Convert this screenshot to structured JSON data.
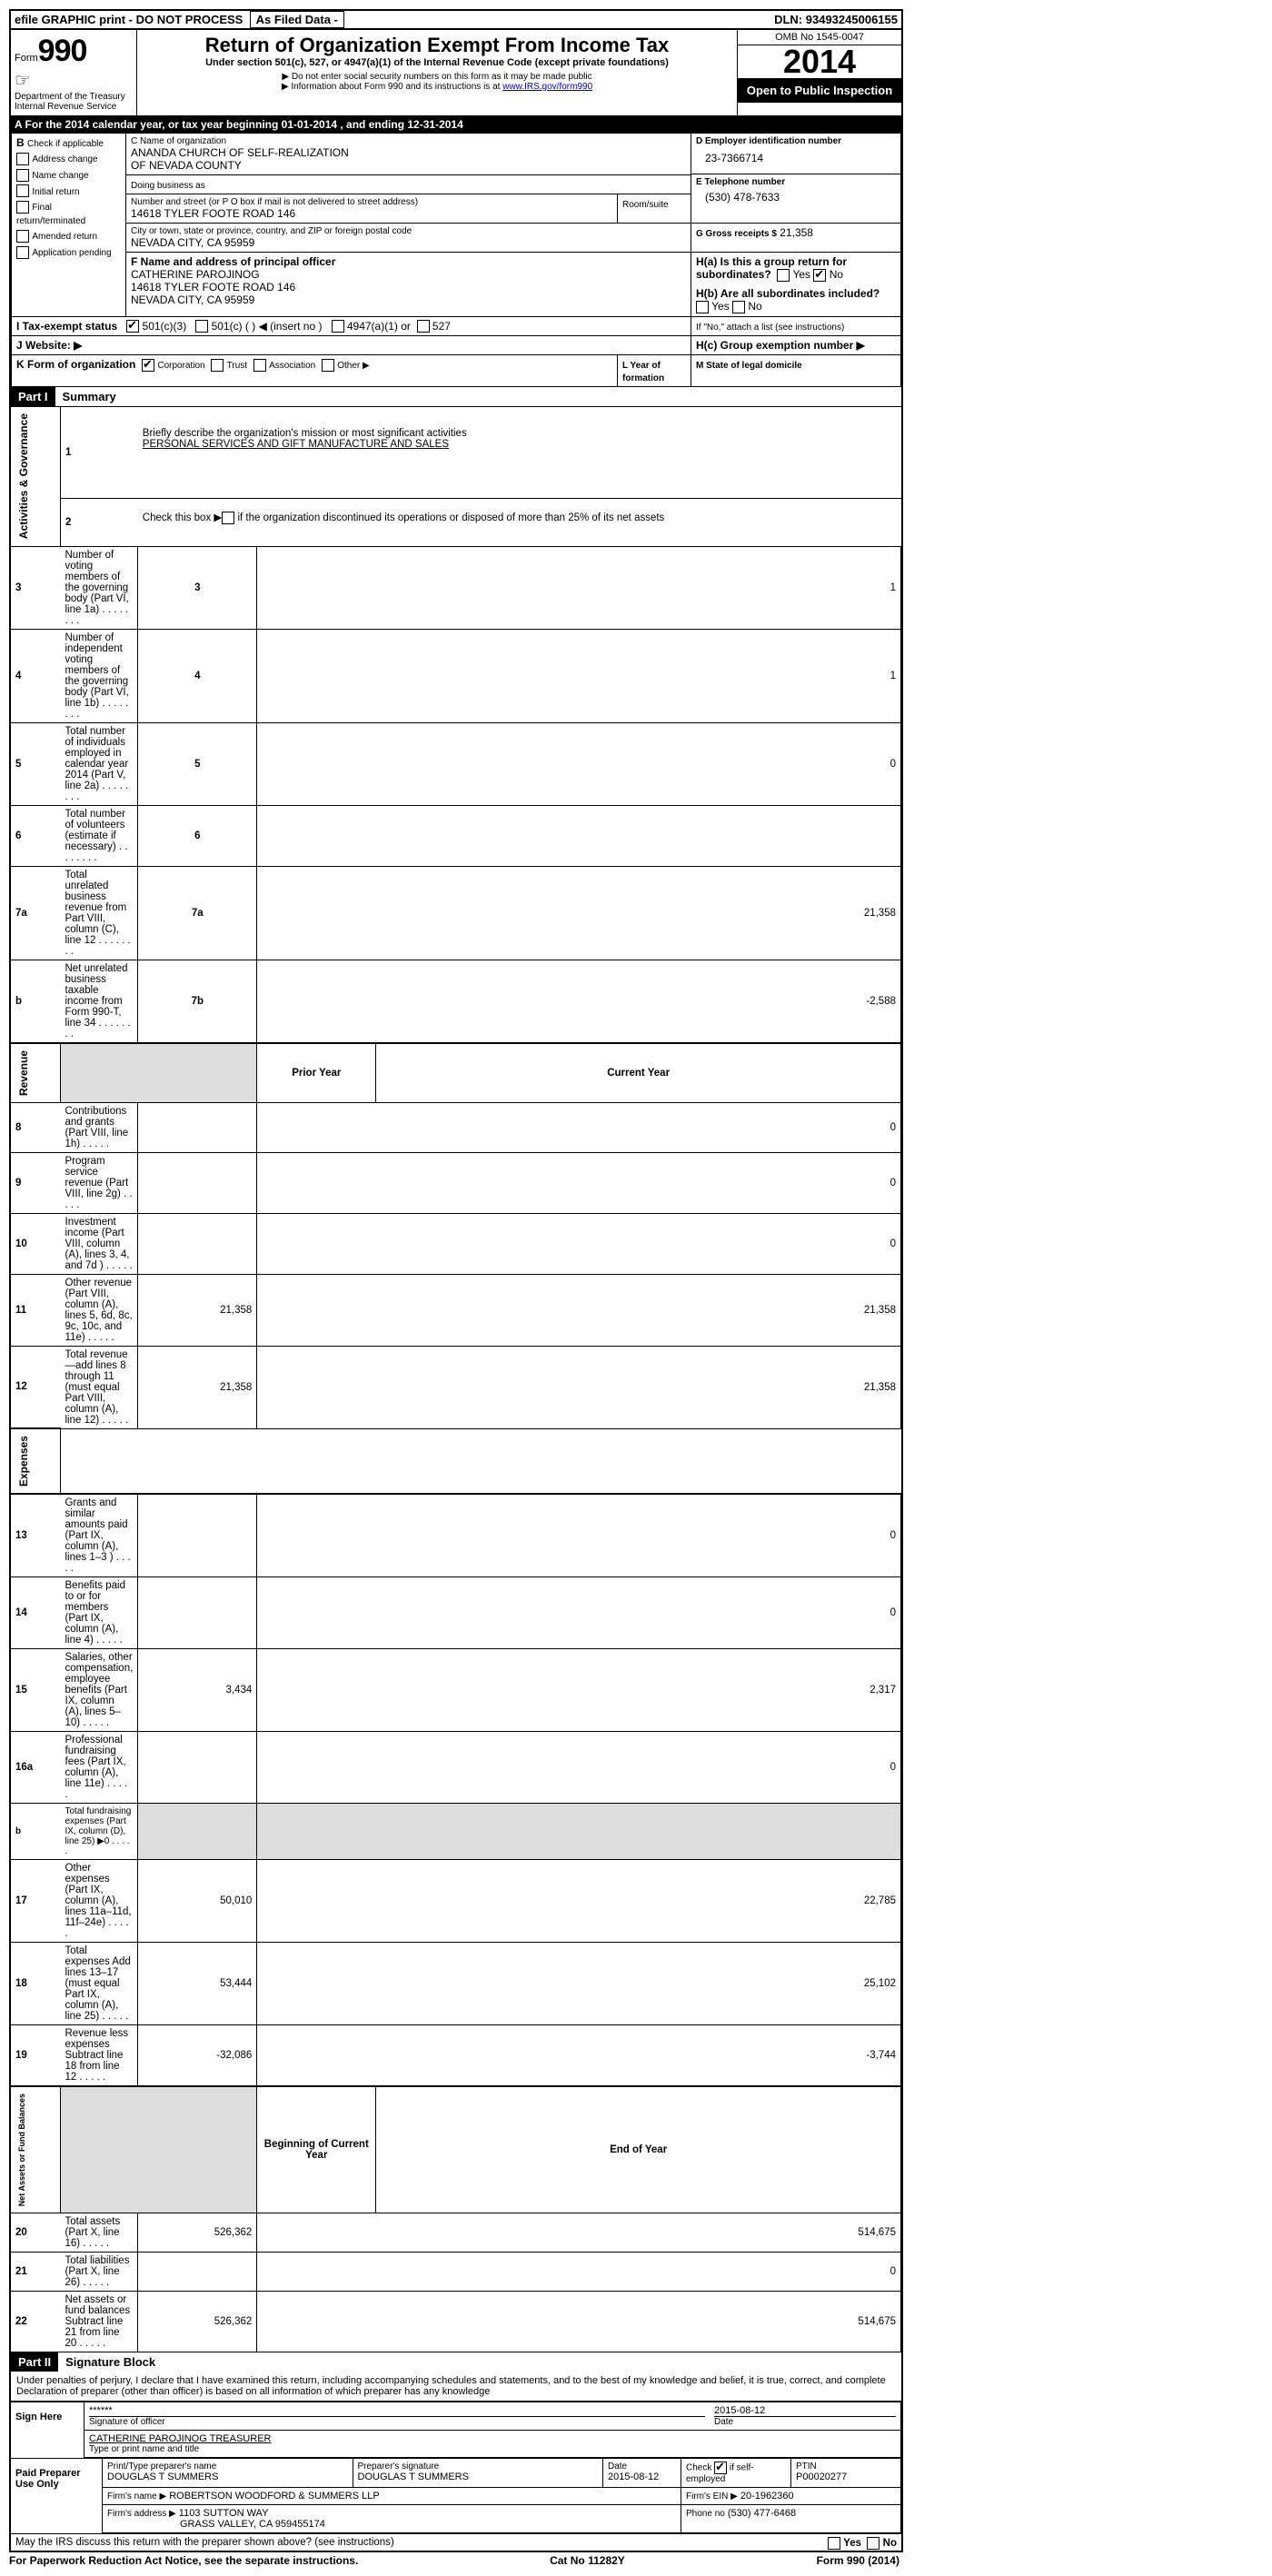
{
  "topbar": {
    "efile": "efile GRAPHIC print - DO NOT PROCESS",
    "asfiled": "As Filed Data -",
    "dln_label": "DLN:",
    "dln": "93493245006155"
  },
  "header": {
    "form_label": "Form",
    "form_number": "990",
    "dept": "Department of the Treasury",
    "irs": "Internal Revenue Service",
    "title": "Return of Organization Exempt From Income Tax",
    "subtitle": "Under section 501(c), 527, or 4947(a)(1) of the Internal Revenue Code (except private foundations)",
    "note1": "▶ Do not enter social security numbers on this form as it may be made public",
    "note2_pre": "▶ Information about Form 990 and its instructions is at ",
    "note2_link": "www.IRS.gov/form990",
    "omb": "OMB No 1545-0047",
    "year": "2014",
    "open": "Open to Public Inspection"
  },
  "sectionA": {
    "text": "A  For the 2014 calendar year, or tax year beginning 01-01-2014     , and ending 12-31-2014"
  },
  "sectionB": {
    "label": "B",
    "instruction": "Check if applicable",
    "items": [
      "Address change",
      "Name change",
      "Initial return",
      "Final return/terminated",
      "Amended return",
      "Application pending"
    ]
  },
  "sectionC": {
    "name_label": "C Name of organization",
    "name1": "ANANDA CHURCH OF SELF-REALIZATION",
    "name2": "OF NEVADA COUNTY",
    "dba_label": "Doing business as",
    "street_label": "Number and street (or P O  box if mail is not delivered to street address)",
    "street": "14618 TYLER FOOTE ROAD 146",
    "room_label": "Room/suite",
    "city_label": "City or town, state or province, country, and ZIP or foreign postal code",
    "city": "NEVADA CITY, CA  95959"
  },
  "sectionD": {
    "label": "D Employer identification number",
    "value": "23-7366714"
  },
  "sectionE": {
    "label": "E Telephone number",
    "value": "(530) 478-7633"
  },
  "sectionG": {
    "label": "G Gross receipts $",
    "value": "21,358"
  },
  "sectionF": {
    "label": "F   Name and address of principal officer",
    "name": "CATHERINE PAROJINOG",
    "street": "14618 TYLER FOOTE ROAD 146",
    "city": "NEVADA CITY, CA  95959"
  },
  "sectionH": {
    "ha": "H(a)  Is this a group return for subordinates?",
    "hb": "H(b)  Are all subordinates included?",
    "hb_note": "If \"No,\" attach a list  (see instructions)",
    "hc": "H(c)   Group exemption number ▶",
    "yes": "Yes",
    "no": "No"
  },
  "sectionI": {
    "label": "I   Tax-exempt status",
    "opt1": "501(c)(3)",
    "opt2": "501(c) (   ) ◀ (insert no )",
    "opt3": "4947(a)(1) or",
    "opt4": "527"
  },
  "sectionJ": {
    "label": "J   Website: ▶"
  },
  "sectionK": {
    "label": "K Form of organization",
    "opts": [
      "Corporation",
      "Trust",
      "Association",
      "Other ▶"
    ]
  },
  "sectionL": {
    "label": "L Year of formation"
  },
  "sectionM": {
    "label": "M State of legal domicile"
  },
  "partI": {
    "header": "Part I",
    "title": "Summary",
    "line1": "Briefly describe the organization's mission or most significant activities",
    "line1_val": "PERSONAL SERVICES AND GIFT MANUFACTURE AND SALES",
    "line2": "Check this box ▶        if the organization discontinued its operations or disposed of more than 25% of its net assets",
    "rows_top": [
      {
        "n": "3",
        "d": "Number of voting members of the governing body (Part VI, line 1a)",
        "k": "3",
        "v": "1"
      },
      {
        "n": "4",
        "d": "Number of independent voting members of the governing body (Part VI, line 1b)",
        "k": "4",
        "v": "1"
      },
      {
        "n": "5",
        "d": "Total number of individuals employed in calendar year 2014 (Part V, line 2a)",
        "k": "5",
        "v": "0"
      },
      {
        "n": "6",
        "d": "Total number of volunteers (estimate if necessary)",
        "k": "6",
        "v": ""
      },
      {
        "n": "7a",
        "d": "Total unrelated business revenue from Part VIII, column (C), line 12",
        "k": "7a",
        "v": "21,358"
      },
      {
        "n": "b",
        "d": "Net unrelated business taxable income from Form 990-T, line 34",
        "k": "7b",
        "v": "-2,588"
      }
    ],
    "col_prior": "Prior Year",
    "col_current": "Current Year",
    "revenue_rows": [
      {
        "n": "8",
        "d": "Contributions and grants (Part VIII, line 1h)",
        "p": "",
        "c": "0"
      },
      {
        "n": "9",
        "d": "Program service revenue (Part VIII, line 2g)",
        "p": "",
        "c": "0"
      },
      {
        "n": "10",
        "d": "Investment income (Part VIII, column (A), lines 3, 4, and 7d )",
        "p": "",
        "c": "0"
      },
      {
        "n": "11",
        "d": "Other revenue (Part VIII, column (A), lines 5, 6d, 8c, 9c, 10c, and 11e)",
        "p": "21,358",
        "c": "21,358"
      },
      {
        "n": "12",
        "d": "Total revenue—add lines 8 through 11 (must equal Part VIII, column (A), line 12)",
        "p": "21,358",
        "c": "21,358"
      }
    ],
    "expense_rows": [
      {
        "n": "13",
        "d": "Grants and similar amounts paid (Part IX, column (A), lines 1–3 )",
        "p": "",
        "c": "0"
      },
      {
        "n": "14",
        "d": "Benefits paid to or for members (Part IX, column (A), line 4)",
        "p": "",
        "c": "0"
      },
      {
        "n": "15",
        "d": "Salaries, other compensation, employee benefits (Part IX, column (A), lines 5–10)",
        "p": "3,434",
        "c": "2,317"
      },
      {
        "n": "16a",
        "d": "Professional fundraising fees (Part IX, column (A), line 11e)",
        "p": "",
        "c": "0"
      },
      {
        "n": "b",
        "d": "Total fundraising expenses (Part IX, column (D), line 25) ▶0",
        "p": "GRAY",
        "c": "GRAY",
        "small": true
      },
      {
        "n": "17",
        "d": "Other expenses (Part IX, column (A), lines 11a–11d, 11f–24e)",
        "p": "50,010",
        "c": "22,785"
      },
      {
        "n": "18",
        "d": "Total expenses  Add lines 13–17 (must equal Part IX, column (A), line 25)",
        "p": "53,444",
        "c": "25,102"
      },
      {
        "n": "19",
        "d": "Revenue less expenses  Subtract line 18 from line 12",
        "p": "-32,086",
        "c": "-3,744"
      }
    ],
    "col_beg": "Beginning of Current Year",
    "col_end": "End of Year",
    "netassets_rows": [
      {
        "n": "20",
        "d": "Total assets (Part X, line 16)",
        "p": "526,362",
        "c": "514,675"
      },
      {
        "n": "21",
        "d": "Total liabilities (Part X, line 26)",
        "p": "",
        "c": "0"
      },
      {
        "n": "22",
        "d": "Net assets or fund balances  Subtract line 21 from line 20",
        "p": "526,362",
        "c": "514,675"
      }
    ],
    "side_activities": "Activities & Governance",
    "side_revenue": "Revenue",
    "side_expenses": "Expenses",
    "side_net": "Net Assets or Fund Balances"
  },
  "partII": {
    "header": "Part II",
    "title": "Signature Block",
    "perjury": "Under penalties of perjury, I declare that I have examined this return, including accompanying schedules and statements, and to the best of my knowledge and belief, it is true, correct, and complete  Declaration of preparer (other than officer) is based on all information of which preparer has any knowledge",
    "sign_here": "Sign Here",
    "sig_placeholder": "******",
    "sig_label": "Signature of officer",
    "date": "2015-08-12",
    "date_label": "Date",
    "name_title": "CATHERINE PAROJINOG TREASURER",
    "name_title_label": "Type or print name and title",
    "paid": "Paid Preparer Use Only",
    "prep_name_label": "Print/Type preparer's name",
    "prep_name": "DOUGLAS T SUMMERS",
    "prep_sig_label": "Preparer's signature",
    "prep_sig": "DOUGLAS T SUMMERS",
    "prep_date": "2015-08-12",
    "check_label": "Check          if self-employed",
    "ptin_label": "PTIN",
    "ptin": "P00020277",
    "firm_name_label": "Firm's name      ▶",
    "firm_name": "ROBERTSON WOODFORD & SUMMERS LLP",
    "firm_ein_label": "Firm's EIN ▶",
    "firm_ein": "20-1962360",
    "firm_addr_label": "Firm's address ▶",
    "firm_addr1": "1103 SUTTON WAY",
    "firm_addr2": "GRASS VALLEY, CA  959455174",
    "phone_label": "Phone no",
    "phone": "(530) 477-6468",
    "discuss": "May the IRS discuss this return with the preparer shown above? (see instructions)",
    "yes": "Yes",
    "no": "No"
  },
  "footer": {
    "paperwork": "For Paperwork Reduction Act Notice, see the separate instructions.",
    "cat": "Cat No 11282Y",
    "form": "Form 990 (2014)"
  }
}
